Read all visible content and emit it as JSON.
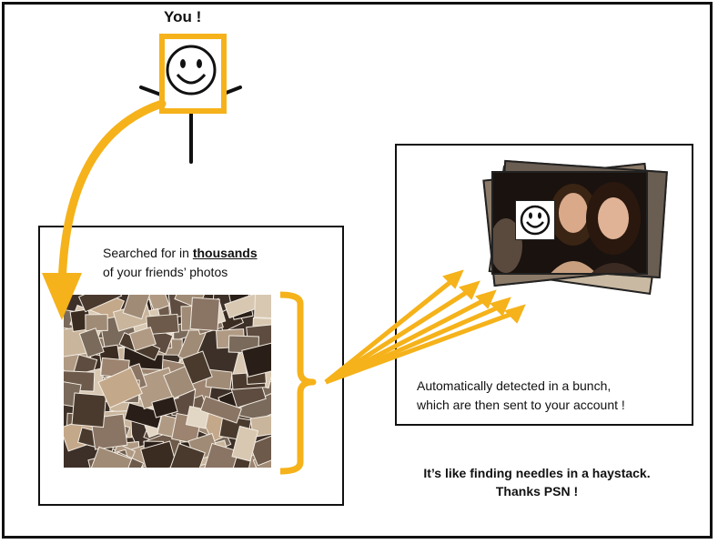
{
  "you_label": "You !",
  "left_panel": {
    "caption_line1_prefix": "Searched for in ",
    "caption_line1_emph": "thousands",
    "caption_line2": "of your  friends’ photos"
  },
  "right_panel": {
    "caption_line1": "Automatically detected in a bunch,",
    "caption_line2": "which are then sent to your account !"
  },
  "tagline_line1": "It’s like finding needles in a haystack.",
  "tagline_line2": "Thanks PSN !",
  "colors": {
    "accent": "#F5B21A",
    "stroke": "#111111"
  }
}
